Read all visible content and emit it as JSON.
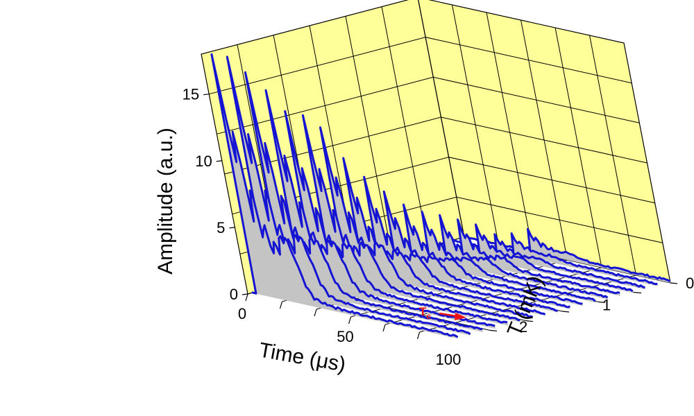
{
  "chart_data": {
    "type": "3d waterfall line",
    "title": "",
    "xlabel": "Time (μs)",
    "ylabel": "Amplitude (a.u.)",
    "zlabel": "T (mK)",
    "xlim": [
      0,
      100
    ],
    "ylim": [
      0,
      18
    ],
    "zlim": [
      0,
      2.6
    ],
    "x_ticks": [
      "0",
      "50",
      "100"
    ],
    "y_ticks": [
      "0",
      "5",
      "10",
      "15"
    ],
    "z_ticks": [
      "0",
      "1",
      "2"
    ],
    "grid": true,
    "colors": {
      "wall": "#ffff99",
      "trace": "#1414d2",
      "fill": "#c4c4c4",
      "annotation": "#ee1111"
    },
    "annotation": {
      "text": "T",
      "subscript": "c",
      "T_mK": 2.1
    },
    "series_T_mK": [
      0.0,
      0.15,
      0.3,
      0.45,
      0.6,
      0.75,
      0.9,
      1.05,
      1.2,
      1.35,
      1.5,
      1.65,
      1.8,
      1.95,
      2.1,
      2.25,
      2.4,
      2.55
    ],
    "series_peak_time_us": [
      34,
      32,
      30,
      28,
      26,
      24,
      22,
      20,
      18,
      16,
      14,
      12,
      11,
      9,
      8,
      6,
      5,
      4
    ],
    "series_peak_amplitude": [
      1.5,
      1.4,
      1.5,
      2.5,
      3.0,
      3.5,
      4.0,
      4.6,
      5.8,
      7.0,
      8.6,
      11.2,
      12.3,
      12.8,
      14.5,
      16.0,
      17.5,
      18.0
    ]
  }
}
